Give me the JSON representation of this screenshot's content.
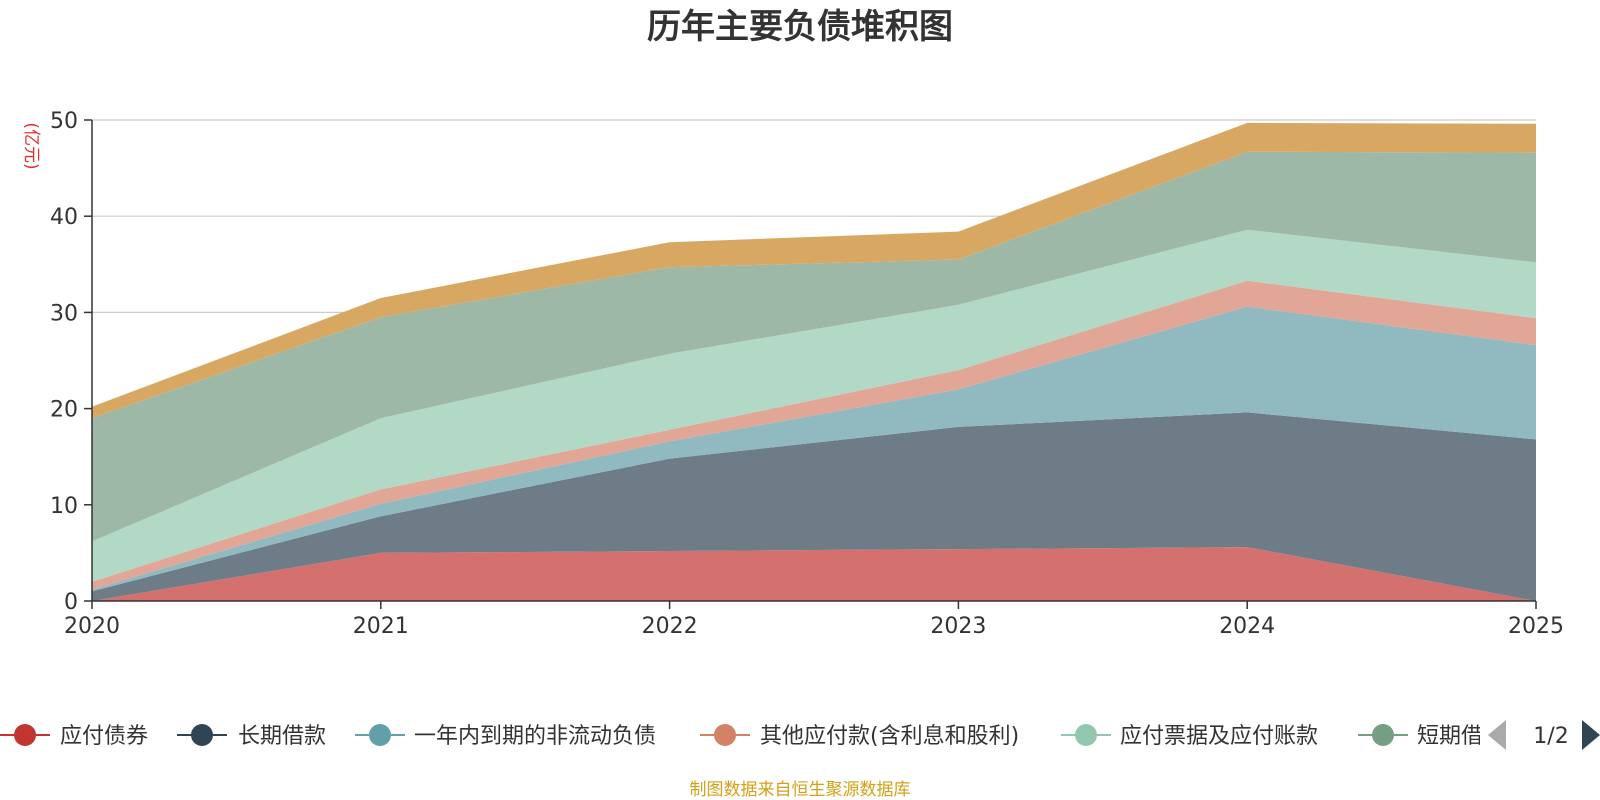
{
  "chart_data": {
    "type": "area",
    "stacked": true,
    "title": "历年主要负债堆积图",
    "ylabel": "(亿元)",
    "xlabel": "",
    "x": [
      "2020",
      "2021",
      "2022",
      "2023",
      "2024",
      "2025"
    ],
    "ylim": [
      0,
      50
    ],
    "yticks": [
      "0",
      "10",
      "20",
      "30",
      "40",
      "50"
    ],
    "grid": true,
    "series": [
      {
        "name": "应付债券",
        "color": "#c23531",
        "fill": "#d4706d",
        "values": [
          0,
          5.0,
          5.2,
          5.4,
          5.6,
          0
        ]
      },
      {
        "name": "长期借款",
        "color": "#2f4554",
        "fill": "#6e7c87",
        "values": [
          1.0,
          3.8,
          9.6,
          12.7,
          14.0,
          16.8
        ]
      },
      {
        "name": "一年内到期的非流动负债",
        "color": "#61a0a8",
        "fill": "#90bac0",
        "values": [
          0.2,
          1.3,
          1.8,
          3.9,
          11.0,
          9.8
        ]
      },
      {
        "name": "其他应付款(含利息和股利)",
        "color": "#d48265",
        "fill": "#e1a695",
        "values": [
          0.8,
          1.5,
          1.2,
          2.0,
          2.7,
          2.8
        ]
      },
      {
        "name": "应付票据及应付账款",
        "color": "#91c7ae",
        "fill": "#b2d8c6",
        "values": [
          4.2,
          7.4,
          7.9,
          6.8,
          5.3,
          5.8
        ]
      },
      {
        "name": "短期借款",
        "color": "#749f83",
        "fill": "#9db8a6",
        "values": [
          12.8,
          10.5,
          9.0,
          4.7,
          8.1,
          11.4
        ]
      },
      {
        "name": "",
        "color": "#ca8622",
        "fill": "#d8a862",
        "values": [
          1.2,
          2.0,
          2.6,
          2.9,
          3.0,
          3.0
        ]
      }
    ],
    "legend_position": "bottom",
    "legend_page": "1/2"
  },
  "legend_visible_labels": [
    "应付债券",
    "长期借款",
    "一年内到期的非流动负债",
    "其他应付款(含利息和股利)",
    "应付票据及应付账款",
    "短期借"
  ],
  "footer": "制图数据来自恒生聚源数据库"
}
